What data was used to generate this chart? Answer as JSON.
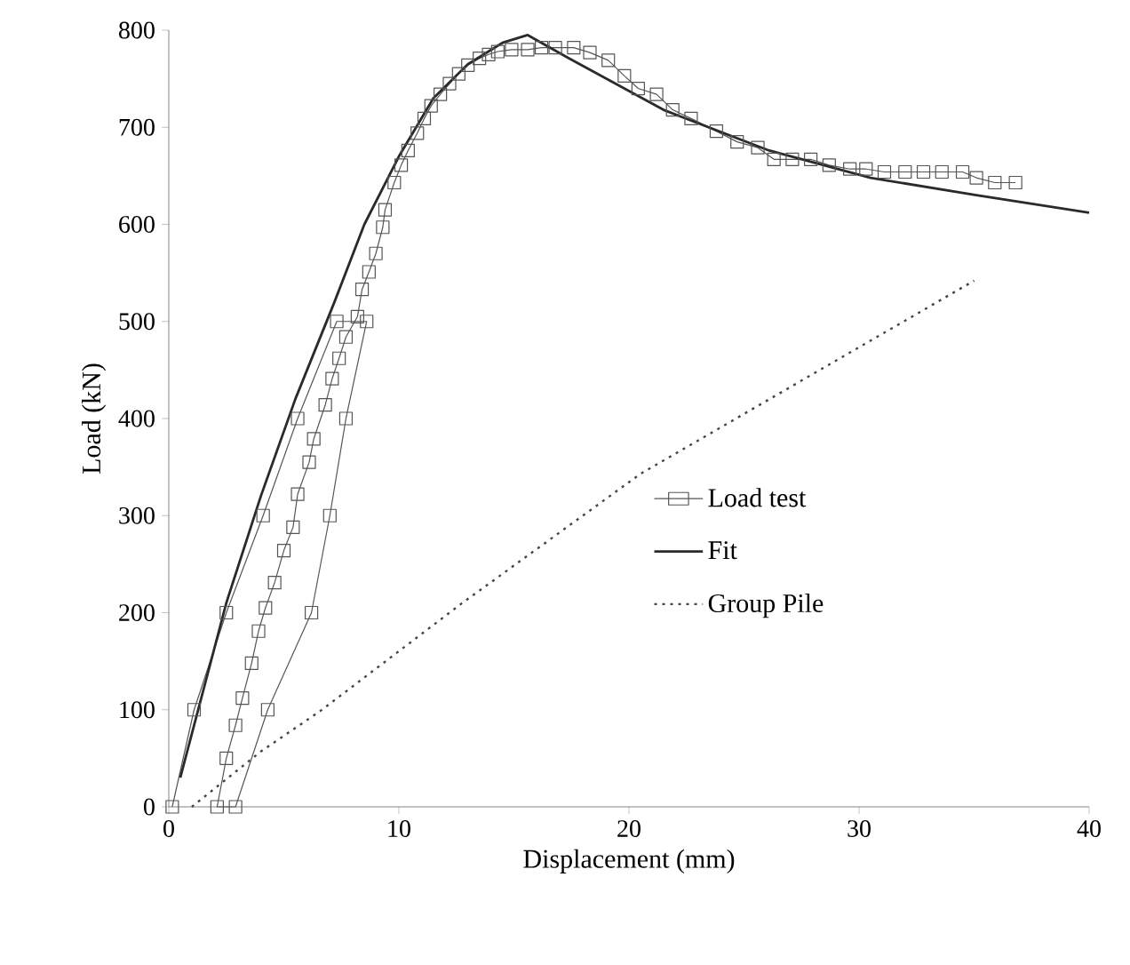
{
  "chart_data": {
    "type": "line",
    "xlabel": "Displacement (mm)",
    "ylabel": "Load (kN)",
    "xlim": [
      0,
      40
    ],
    "ylim": [
      0,
      800
    ],
    "xticks": [
      0,
      10,
      20,
      30,
      40
    ],
    "yticks": [
      0,
      100,
      200,
      300,
      400,
      500,
      600,
      700,
      800
    ],
    "legend": "right",
    "series": [
      {
        "name": "Load test",
        "color": "#555555",
        "marker": "square",
        "line_style": "solid",
        "x": [
          0.15,
          1.1,
          2.5,
          4.1,
          5.6,
          7.3,
          8.6,
          7.7,
          7.0,
          6.2,
          4.3,
          2.9,
          2.1,
          2.5,
          2.9,
          3.2,
          3.6,
          3.9,
          4.2,
          4.6,
          5.0,
          5.4,
          5.6,
          6.1,
          6.3,
          6.8,
          7.1,
          7.4,
          7.7,
          8.2,
          8.4,
          8.7,
          9.0,
          9.3,
          9.4,
          9.8,
          10.1,
          10.4,
          10.8,
          11.1,
          11.4,
          11.8,
          12.2,
          12.6,
          13.0,
          13.5,
          13.9,
          14.3,
          14.9,
          15.6,
          16.2,
          16.8,
          17.6,
          18.3,
          19.1,
          19.8,
          20.4,
          21.2,
          21.9,
          22.7,
          23.8,
          24.7,
          25.6,
          26.3,
          27.1,
          27.9,
          28.7,
          29.6,
          30.3,
          31.1,
          32.0,
          32.8,
          33.6,
          34.5,
          35.1,
          35.9,
          36.8
        ],
        "values": [
          0,
          100,
          200,
          300,
          400,
          500,
          500,
          400,
          300,
          200,
          100,
          0,
          0,
          50,
          84,
          112,
          148,
          181,
          205,
          231,
          264,
          288,
          322,
          355,
          379,
          414,
          441,
          462,
          484,
          505,
          533,
          551,
          570,
          597,
          615,
          643,
          661,
          676,
          694,
          709,
          722,
          734,
          745,
          755,
          764,
          771,
          775,
          778,
          780,
          780,
          782,
          782,
          782,
          777,
          769,
          753,
          740,
          734,
          718,
          709,
          696,
          685,
          679,
          667,
          667,
          667,
          661,
          657,
          657,
          654,
          654,
          654,
          654,
          654,
          648,
          643,
          643
        ]
      },
      {
        "name": "Fit",
        "color": "#2a2a2a",
        "marker": "none",
        "line_style": "solid",
        "x": [
          0.5,
          1.5,
          2.5,
          4.0,
          5.5,
          7.2,
          8.5,
          10.0,
          11.5,
          13.0,
          14.5,
          15.6,
          17.4,
          21.5,
          26.1,
          30.5,
          35.1,
          40.0
        ],
        "values": [
          30,
          120,
          210,
          320,
          420,
          520,
          600,
          670,
          730,
          765,
          787,
          795,
          771,
          718,
          676,
          648,
          630,
          612
        ]
      },
      {
        "name": "Group Pile",
        "color": "#444444",
        "marker": "none",
        "line_style": "dotted",
        "x": [
          1.0,
          4.0,
          6.6,
          12.7,
          20.5,
          35.0
        ],
        "values": [
          0,
          57,
          99,
          209,
          343,
          542
        ]
      }
    ]
  }
}
